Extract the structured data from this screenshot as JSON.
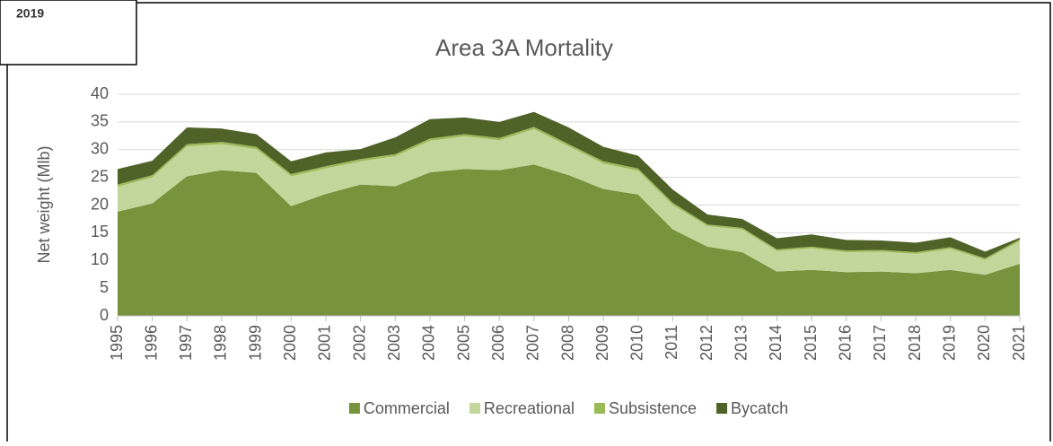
{
  "corner_label": "2019",
  "chart_data": {
    "type": "stacked_area",
    "title": "Area 3A Mortality",
    "y_label": "Net weight (Mlb)",
    "categories": [
      "1995",
      "1996",
      "1997",
      "1998",
      "1999",
      "2000",
      "2001",
      "2002",
      "2003",
      "2004",
      "2005",
      "2006",
      "2007",
      "2008",
      "2009",
      "2010",
      "2011",
      "2012",
      "2013",
      "2014",
      "2015",
      "2016",
      "2017",
      "2018",
      "2019",
      "2020",
      "2021"
    ],
    "series": [
      {
        "name": "Commercial",
        "color": "#77933c",
        "values": [
          18.8,
          20.3,
          25.2,
          26.3,
          25.8,
          19.8,
          22.0,
          23.7,
          23.4,
          25.9,
          26.5,
          26.3,
          27.3,
          25.4,
          22.9,
          21.9,
          15.6,
          12.5,
          11.5,
          8.0,
          8.3,
          7.9,
          8.0,
          7.7,
          8.3,
          7.4,
          9.4
        ]
      },
      {
        "name": "Recreational",
        "color": "#c3d69b",
        "values": [
          4.5,
          4.7,
          5.4,
          4.7,
          4.3,
          5.4,
          4.6,
          4.2,
          5.4,
          5.7,
          5.9,
          5.4,
          6.4,
          5.2,
          4.6,
          4.3,
          4.4,
          3.7,
          4.1,
          3.7,
          3.9,
          3.6,
          3.6,
          3.5,
          3.8,
          2.7,
          4.1
        ]
      },
      {
        "name": "Subsistence",
        "color": "#9bbb59",
        "values": [
          0.4,
          0.4,
          0.4,
          0.4,
          0.4,
          0.4,
          0.4,
          0.4,
          0.4,
          0.4,
          0.4,
          0.4,
          0.4,
          0.4,
          0.4,
          0.4,
          0.4,
          0.3,
          0.3,
          0.3,
          0.3,
          0.3,
          0.3,
          0.3,
          0.3,
          0.3,
          0.3
        ]
      },
      {
        "name": "Bycatch",
        "color": "#4f6228",
        "values": [
          2.8,
          2.6,
          3.0,
          2.4,
          2.3,
          2.3,
          2.5,
          1.8,
          3.0,
          3.5,
          3.0,
          2.9,
          2.7,
          3.0,
          2.6,
          2.3,
          2.4,
          1.8,
          1.6,
          2.0,
          2.2,
          1.9,
          1.7,
          1.7,
          1.8,
          1.2,
          0.3
        ]
      }
    ],
    "ylim": [
      0,
      40
    ],
    "yticks": [
      0,
      5,
      10,
      15,
      20,
      25,
      30,
      35,
      40
    ],
    "grid": true,
    "legend": "bottom"
  }
}
